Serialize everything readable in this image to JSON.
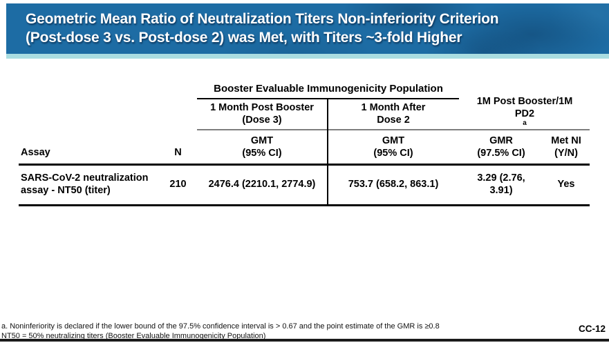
{
  "slide": {
    "title_line1": "Geometric Mean Ratio of Neutralization Titers Non-inferiority Criterion",
    "title_line2": "(Post-dose 3 vs. Post-dose 2) was Met, with Titers ~3-fold Higher",
    "slide_number": "CC-12"
  },
  "table": {
    "span_header": "Booster Evaluable Immunogenicity Population",
    "group_headers": [
      {
        "line1": "1 Month Post Booster",
        "line2": "(Dose 3)"
      },
      {
        "line1": "1 Month After",
        "line2": "Dose 2"
      },
      {
        "line1": "1M Post Booster/1M",
        "line2": "PD2",
        "superscript": "a"
      }
    ],
    "col_headers": {
      "assay": "Assay",
      "n": "N",
      "gmt1_line1": "GMT",
      "gmt1_line2": "(95% CI)",
      "gmt2_line1": "GMT",
      "gmt2_line2": "(95% CI)",
      "gmr_line1": "GMR",
      "gmr_line2": "(97.5% CI)",
      "metni_line1": "Met NI",
      "metni_line2": "(Y/N)"
    },
    "row": {
      "assay_line1": "SARS-CoV-2 neutralization",
      "assay_line2": "assay - NT50 (titer)",
      "n": "210",
      "gmt_post_dose3": "2476.4 (2210.1, 2774.9)",
      "gmt_post_dose2": "753.7 (658.2, 863.1)",
      "gmr": "3.29 (2.76, 3.91)",
      "met_ni": "Yes"
    }
  },
  "footnotes": {
    "line1": "a. Noninferiority is declared if the lower bound of the 97.5% confidence interval is > 0.67 and the point estimate of the GMR is ≥0.8",
    "line2": "NT50 = 50% neutralizing titers (Booster Evaluable Immunogenicity Population)"
  },
  "colors": {
    "banner_blue": "#1d6ca4",
    "teal_strip": "#aadde1",
    "rule_gray": "#7d7d7d",
    "rule_black": "#000000"
  }
}
